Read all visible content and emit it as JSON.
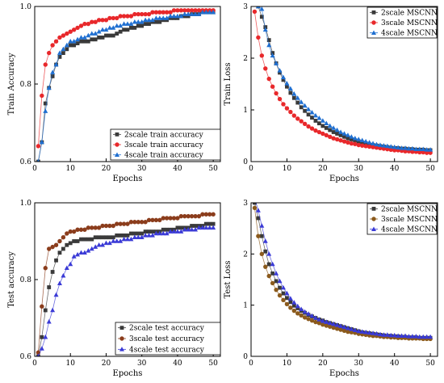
{
  "chart_data": [
    {
      "id": "train-acc",
      "type": "line",
      "xlabel": "Epochs",
      "ylabel": "Train Accuracy",
      "xlim": [
        0,
        52
      ],
      "ylim": [
        0.6,
        1.0
      ],
      "xticks": [
        0,
        10,
        20,
        30,
        40,
        50
      ],
      "yticks": [
        0.6,
        0.8,
        1.0
      ],
      "yticklabels": [
        "0.6",
        "0.8",
        "1.0"
      ],
      "legend_position": "bottom-right",
      "x": [
        1,
        2,
        3,
        4,
        5,
        6,
        7,
        8,
        9,
        10,
        11,
        12,
        13,
        14,
        15,
        16,
        17,
        18,
        19,
        20,
        21,
        22,
        23,
        24,
        25,
        26,
        27,
        28,
        29,
        30,
        31,
        32,
        33,
        34,
        35,
        36,
        37,
        38,
        39,
        40,
        41,
        42,
        43,
        44,
        45,
        46,
        47,
        48,
        49,
        50
      ],
      "series": [
        {
          "name": "2scale train accuracy",
          "color": "#3a3a3a",
          "marker": "square",
          "values": [
            0.6,
            0.65,
            0.75,
            0.79,
            0.82,
            0.85,
            0.87,
            0.88,
            0.89,
            0.9,
            0.9,
            0.905,
            0.91,
            0.91,
            0.91,
            0.915,
            0.915,
            0.92,
            0.92,
            0.925,
            0.925,
            0.925,
            0.93,
            0.935,
            0.94,
            0.94,
            0.945,
            0.945,
            0.95,
            0.95,
            0.955,
            0.955,
            0.96,
            0.96,
            0.96,
            0.965,
            0.965,
            0.97,
            0.97,
            0.97,
            0.975,
            0.975,
            0.975,
            0.98,
            0.98,
            0.98,
            0.985,
            0.985,
            0.985,
            0.985
          ]
        },
        {
          "name": "3scale train accuracy",
          "color": "#e8282b",
          "marker": "circle",
          "values": [
            0.64,
            0.77,
            0.85,
            0.88,
            0.9,
            0.91,
            0.92,
            0.925,
            0.93,
            0.935,
            0.94,
            0.945,
            0.95,
            0.955,
            0.955,
            0.96,
            0.96,
            0.965,
            0.965,
            0.965,
            0.97,
            0.97,
            0.97,
            0.975,
            0.975,
            0.975,
            0.975,
            0.98,
            0.98,
            0.98,
            0.98,
            0.98,
            0.985,
            0.985,
            0.985,
            0.985,
            0.985,
            0.985,
            0.99,
            0.99,
            0.99,
            0.99,
            0.99,
            0.99,
            0.99,
            0.99,
            0.99,
            0.99,
            0.99,
            0.99
          ]
        },
        {
          "name": "4scale train accuracy",
          "color": "#1f6fd1",
          "marker": "triangle",
          "values": [
            0.6,
            0.65,
            0.73,
            0.79,
            0.83,
            0.85,
            0.88,
            0.89,
            0.9,
            0.91,
            0.91,
            0.915,
            0.92,
            0.92,
            0.925,
            0.93,
            0.93,
            0.935,
            0.94,
            0.94,
            0.945,
            0.945,
            0.95,
            0.95,
            0.955,
            0.955,
            0.955,
            0.96,
            0.96,
            0.96,
            0.965,
            0.965,
            0.965,
            0.97,
            0.97,
            0.97,
            0.97,
            0.975,
            0.975,
            0.975,
            0.975,
            0.98,
            0.98,
            0.98,
            0.98,
            0.98,
            0.985,
            0.985,
            0.985,
            0.985
          ]
        }
      ]
    },
    {
      "id": "train-loss",
      "type": "line",
      "xlabel": "Epochs",
      "ylabel": "Train Loss",
      "xlim": [
        0,
        52
      ],
      "ylim": [
        0,
        3
      ],
      "xticks": [
        0,
        10,
        20,
        30,
        40,
        50
      ],
      "yticks": [
        0,
        1,
        2,
        3
      ],
      "yticklabels": [
        "0",
        "1",
        "2",
        "3"
      ],
      "legend_position": "top-right",
      "x": [
        1,
        2,
        3,
        4,
        5,
        6,
        7,
        8,
        9,
        10,
        11,
        12,
        13,
        14,
        15,
        16,
        17,
        18,
        19,
        20,
        21,
        22,
        23,
        24,
        25,
        26,
        27,
        28,
        29,
        30,
        31,
        32,
        33,
        34,
        35,
        36,
        37,
        38,
        39,
        40,
        41,
        42,
        43,
        44,
        45,
        46,
        47,
        48,
        49,
        50
      ],
      "series": [
        {
          "name": "2scale MSCNN",
          "color": "#3a3a3a",
          "marker": "square",
          "values": [
            3.1,
            3.0,
            2.8,
            2.6,
            2.35,
            2.1,
            1.9,
            1.72,
            1.58,
            1.45,
            1.33,
            1.23,
            1.14,
            1.05,
            0.98,
            0.91,
            0.85,
            0.79,
            0.74,
            0.69,
            0.65,
            0.61,
            0.57,
            0.54,
            0.51,
            0.48,
            0.45,
            0.43,
            0.41,
            0.39,
            0.37,
            0.35,
            0.33,
            0.32,
            0.31,
            0.3,
            0.29,
            0.28,
            0.27,
            0.26,
            0.26,
            0.25,
            0.25,
            0.24,
            0.24,
            0.23,
            0.23,
            0.23,
            0.22,
            0.22
          ]
        },
        {
          "name": "3scale MSCNN",
          "color": "#e8282b",
          "marker": "circle",
          "values": [
            2.9,
            2.4,
            2.05,
            1.8,
            1.6,
            1.45,
            1.32,
            1.21,
            1.11,
            1.03,
            0.96,
            0.89,
            0.83,
            0.78,
            0.73,
            0.68,
            0.64,
            0.6,
            0.57,
            0.54,
            0.51,
            0.48,
            0.45,
            0.43,
            0.41,
            0.39,
            0.37,
            0.35,
            0.34,
            0.32,
            0.31,
            0.3,
            0.29,
            0.28,
            0.27,
            0.26,
            0.25,
            0.24,
            0.23,
            0.22,
            0.22,
            0.21,
            0.2,
            0.2,
            0.19,
            0.19,
            0.18,
            0.18,
            0.17,
            0.17
          ]
        },
        {
          "name": "4scale MSCNN",
          "color": "#1f6fd1",
          "marker": "triangle",
          "values": [
            3.1,
            3.0,
            2.95,
            2.55,
            2.25,
            2.05,
            1.9,
            1.76,
            1.63,
            1.51,
            1.41,
            1.31,
            1.23,
            1.15,
            1.08,
            1.01,
            0.95,
            0.89,
            0.84,
            0.79,
            0.74,
            0.69,
            0.65,
            0.61,
            0.57,
            0.54,
            0.51,
            0.48,
            0.45,
            0.43,
            0.41,
            0.39,
            0.37,
            0.35,
            0.33,
            0.32,
            0.31,
            0.3,
            0.29,
            0.28,
            0.27,
            0.26,
            0.26,
            0.25,
            0.25,
            0.24,
            0.24,
            0.24,
            0.23,
            0.23
          ]
        }
      ]
    },
    {
      "id": "test-acc",
      "type": "line",
      "xlabel": "Epochs",
      "ylabel": "Test accuracy",
      "xlim": [
        0,
        52
      ],
      "ylim": [
        0.6,
        1.0
      ],
      "xticks": [
        0,
        10,
        20,
        30,
        40,
        50
      ],
      "yticks": [
        0.6,
        0.8,
        1.0
      ],
      "yticklabels": [
        "0.6",
        "0.8",
        "1.0"
      ],
      "legend_position": "bottom-right",
      "x": [
        1,
        2,
        3,
        4,
        5,
        6,
        7,
        8,
        9,
        10,
        11,
        12,
        13,
        14,
        15,
        16,
        17,
        18,
        19,
        20,
        21,
        22,
        23,
        24,
        25,
        26,
        27,
        28,
        29,
        30,
        31,
        32,
        33,
        34,
        35,
        36,
        37,
        38,
        39,
        40,
        41,
        42,
        43,
        44,
        45,
        46,
        47,
        48,
        49,
        50
      ],
      "series": [
        {
          "name": "2scale test accuracy",
          "color": "#3a3a3a",
          "marker": "square",
          "values": [
            0.6,
            0.65,
            0.72,
            0.78,
            0.82,
            0.85,
            0.87,
            0.88,
            0.89,
            0.895,
            0.9,
            0.9,
            0.905,
            0.905,
            0.905,
            0.905,
            0.91,
            0.91,
            0.91,
            0.91,
            0.91,
            0.91,
            0.915,
            0.915,
            0.915,
            0.915,
            0.92,
            0.92,
            0.92,
            0.92,
            0.925,
            0.925,
            0.925,
            0.925,
            0.925,
            0.93,
            0.93,
            0.93,
            0.93,
            0.935,
            0.935,
            0.935,
            0.935,
            0.94,
            0.94,
            0.94,
            0.94,
            0.945,
            0.945,
            0.945
          ]
        },
        {
          "name": "3scale test accuracy",
          "color": "#8b3d1c",
          "marker": "circle",
          "values": [
            0.61,
            0.73,
            0.83,
            0.88,
            0.885,
            0.89,
            0.9,
            0.91,
            0.92,
            0.925,
            0.925,
            0.93,
            0.93,
            0.93,
            0.935,
            0.935,
            0.935,
            0.935,
            0.94,
            0.94,
            0.94,
            0.94,
            0.945,
            0.945,
            0.945,
            0.945,
            0.95,
            0.95,
            0.95,
            0.95,
            0.95,
            0.955,
            0.955,
            0.955,
            0.955,
            0.96,
            0.96,
            0.96,
            0.96,
            0.96,
            0.965,
            0.965,
            0.965,
            0.965,
            0.965,
            0.965,
            0.97,
            0.97,
            0.97,
            0.97
          ]
        },
        {
          "name": "4scale test accuracy",
          "color": "#3a3ad6",
          "marker": "triangle",
          "values": [
            0.6,
            0.62,
            0.65,
            0.69,
            0.72,
            0.76,
            0.79,
            0.81,
            0.83,
            0.84,
            0.86,
            0.865,
            0.87,
            0.87,
            0.875,
            0.88,
            0.885,
            0.89,
            0.89,
            0.895,
            0.895,
            0.9,
            0.9,
            0.9,
            0.905,
            0.905,
            0.905,
            0.91,
            0.91,
            0.91,
            0.915,
            0.915,
            0.915,
            0.92,
            0.92,
            0.92,
            0.92,
            0.925,
            0.925,
            0.925,
            0.925,
            0.93,
            0.93,
            0.93,
            0.93,
            0.935,
            0.935,
            0.935,
            0.935,
            0.935
          ]
        }
      ]
    },
    {
      "id": "test-loss",
      "type": "line",
      "xlabel": "Epochs",
      "ylabel": "Test Loss",
      "xlim": [
        0,
        52
      ],
      "ylim": [
        0,
        3
      ],
      "xticks": [
        0,
        10,
        20,
        30,
        40,
        50
      ],
      "yticks": [
        0,
        1,
        2,
        3
      ],
      "yticklabels": [
        "0",
        "1",
        "2",
        "3"
      ],
      "legend_position": "top-right",
      "x": [
        1,
        2,
        3,
        4,
        5,
        6,
        7,
        8,
        9,
        10,
        11,
        12,
        13,
        14,
        15,
        16,
        17,
        18,
        19,
        20,
        21,
        22,
        23,
        24,
        25,
        26,
        27,
        28,
        29,
        30,
        31,
        32,
        33,
        34,
        35,
        36,
        37,
        38,
        39,
        40,
        41,
        42,
        43,
        44,
        45,
        46,
        47,
        48,
        49,
        50
      ],
      "series": [
        {
          "name": "2scale MSCNN",
          "color": "#3a3a3a",
          "marker": "square",
          "values": [
            3.0,
            2.7,
            2.35,
            2.05,
            1.8,
            1.62,
            1.47,
            1.34,
            1.23,
            1.14,
            1.06,
            0.99,
            0.94,
            0.89,
            0.85,
            0.81,
            0.78,
            0.75,
            0.72,
            0.7,
            0.67,
            0.65,
            0.63,
            0.61,
            0.59,
            0.57,
            0.55,
            0.53,
            0.51,
            0.49,
            0.47,
            0.46,
            0.45,
            0.44,
            0.43,
            0.42,
            0.41,
            0.4,
            0.4,
            0.39,
            0.39,
            0.38,
            0.38,
            0.37,
            0.37,
            0.37,
            0.36,
            0.36,
            0.36,
            0.36
          ]
        },
        {
          "name": "3scale MSCNN",
          "color": "#8b5a1c",
          "marker": "circle",
          "values": [
            2.9,
            2.35,
            2.0,
            1.75,
            1.57,
            1.43,
            1.3,
            1.19,
            1.1,
            1.02,
            0.95,
            0.89,
            0.84,
            0.8,
            0.76,
            0.73,
            0.7,
            0.67,
            0.65,
            0.62,
            0.6,
            0.58,
            0.56,
            0.54,
            0.52,
            0.5,
            0.48,
            0.47,
            0.46,
            0.44,
            0.43,
            0.42,
            0.41,
            0.4,
            0.4,
            0.39,
            0.38,
            0.38,
            0.37,
            0.37,
            0.36,
            0.36,
            0.36,
            0.35,
            0.35,
            0.35,
            0.35,
            0.34,
            0.34,
            0.34
          ]
        },
        {
          "name": "4scale MSCNN",
          "color": "#3a3ad6",
          "marker": "triangle",
          "values": [
            3.1,
            2.85,
            2.55,
            2.25,
            2.0,
            1.8,
            1.62,
            1.47,
            1.34,
            1.23,
            1.13,
            1.05,
            0.98,
            0.92,
            0.87,
            0.83,
            0.79,
            0.75,
            0.72,
            0.69,
            0.67,
            0.65,
            0.63,
            0.61,
            0.59,
            0.57,
            0.55,
            0.53,
            0.51,
            0.49,
            0.48,
            0.47,
            0.46,
            0.45,
            0.44,
            0.43,
            0.42,
            0.42,
            0.41,
            0.41,
            0.4,
            0.4,
            0.4,
            0.39,
            0.39,
            0.39,
            0.38,
            0.38,
            0.38,
            0.38
          ]
        }
      ]
    }
  ]
}
